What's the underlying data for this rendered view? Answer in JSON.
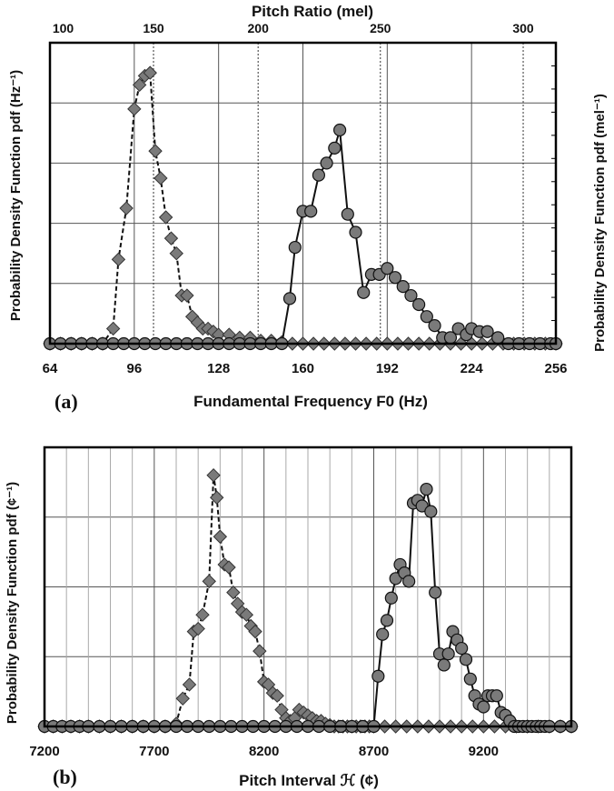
{
  "panels": [
    {
      "panel_label": "(a)",
      "top_axis_title": "Pitch Ratio (mel)",
      "right_ylabel": "Probability Density Function pdf (mel⁻¹)",
      "ylabel": "Probability Density Function pdf (Hz⁻¹)",
      "xlabel": "Fundamental Frequency F0 (Hz)"
    },
    {
      "panel_label": "(b)",
      "ylabel": "Probability Density Function pdf (¢⁻¹)",
      "xlabel": "Pitch Interval ℋ (¢)"
    }
  ],
  "chart_data": [
    {
      "type": "line",
      "x_axis": {
        "ticks": [
          64,
          96,
          128,
          160,
          192,
          224,
          256
        ],
        "lim": [
          64,
          256
        ]
      },
      "top_axis": {
        "ticks": [
          100,
          150,
          200,
          250,
          300
        ],
        "tick_positions_hz": [
          69.0,
          103.3,
          143.0,
          189.4,
          243.6
        ],
        "dotted_lines_hz": [
          103.3,
          143.0,
          189.4,
          243.6
        ]
      },
      "y_axis": {
        "lim": [
          0,
          1
        ],
        "gridlines": [
          0.2,
          0.4,
          0.6,
          0.8
        ],
        "right_minor_ticks": 12
      },
      "grid": true,
      "series": [
        {
          "marker": "diamond",
          "line": "dashed",
          "x": [
            64,
            68,
            72,
            76,
            80,
            84,
            88,
            90,
            93,
            96,
            98,
            100,
            102,
            104,
            106,
            108,
            110,
            112,
            114,
            116,
            118,
            120,
            122,
            124,
            126,
            128,
            132,
            136,
            140,
            144,
            148,
            152,
            156,
            160,
            164,
            168,
            172,
            176,
            180,
            184,
            188,
            192,
            196,
            200,
            204,
            208,
            212,
            216,
            220,
            224,
            228,
            232,
            236,
            240,
            244,
            248,
            252,
            256
          ],
          "y": [
            0,
            0,
            0,
            0,
            0,
            0,
            0.05,
            0.28,
            0.45,
            0.78,
            0.86,
            0.89,
            0.9,
            0.64,
            0.55,
            0.42,
            0.35,
            0.3,
            0.16,
            0.16,
            0.09,
            0.07,
            0.05,
            0.05,
            0.04,
            0.03,
            0.03,
            0.02,
            0.02,
            0.01,
            0.01,
            0.005,
            0,
            0,
            0,
            0,
            0,
            0,
            0,
            0,
            0,
            0,
            0,
            0,
            0,
            0,
            0,
            0,
            0,
            0,
            0,
            0,
            0,
            0,
            0,
            0,
            0,
            0
          ]
        },
        {
          "marker": "circle",
          "line": "solid",
          "x": [
            64,
            68,
            72,
            76,
            80,
            84,
            88,
            92,
            96,
            100,
            104,
            108,
            112,
            116,
            120,
            124,
            128,
            132,
            136,
            140,
            144,
            148,
            152,
            155,
            157,
            160,
            163,
            166,
            169,
            172,
            174,
            177,
            180,
            183,
            186,
            189,
            192,
            195,
            198,
            201,
            204,
            207,
            210,
            213,
            216,
            219,
            222,
            224,
            227,
            230,
            234,
            238,
            242,
            246,
            250,
            254,
            256
          ],
          "y": [
            0,
            0,
            0,
            0,
            0,
            0,
            0,
            0,
            0,
            0,
            0,
            0,
            0,
            0,
            0,
            0,
            0,
            0,
            0,
            0,
            0,
            0,
            0,
            0.15,
            0.32,
            0.44,
            0.44,
            0.56,
            0.6,
            0.65,
            0.71,
            0.43,
            0.37,
            0.17,
            0.23,
            0.23,
            0.25,
            0.22,
            0.19,
            0.16,
            0.13,
            0.09,
            0.06,
            0.02,
            0.02,
            0.05,
            0.03,
            0.05,
            0.04,
            0.04,
            0.02,
            0,
            0,
            0,
            0,
            0,
            0
          ]
        }
      ]
    },
    {
      "type": "line",
      "x_axis": {
        "ticks": [
          7200,
          7700,
          8200,
          8700,
          9200
        ],
        "lim": [
          7200,
          9600
        ]
      },
      "y_axis": {
        "lim": [
          0,
          1
        ],
        "gridlines": [
          0.25,
          0.5,
          0.75
        ]
      },
      "grid": true,
      "series": [
        {
          "marker": "diamond",
          "line": "dashed",
          "x": [
            7200,
            7240,
            7280,
            7320,
            7360,
            7400,
            7450,
            7500,
            7550,
            7600,
            7650,
            7700,
            7750,
            7800,
            7830,
            7860,
            7880,
            7900,
            7920,
            7950,
            7970,
            7985,
            8000,
            8020,
            8040,
            8060,
            8080,
            8100,
            8120,
            8140,
            8160,
            8180,
            8200,
            8220,
            8240,
            8260,
            8280,
            8300,
            8320,
            8340,
            8360,
            8380,
            8400,
            8420,
            8440,
            8460,
            8480,
            8500,
            8520,
            8540,
            8560,
            8580,
            8600,
            8620,
            8640,
            8660,
            8680,
            8700,
            8750,
            8800,
            8850,
            8900,
            8950,
            9000,
            9050,
            9100,
            9150,
            9200,
            9250,
            9300,
            9350,
            9400,
            9450,
            9500,
            9550,
            9600
          ],
          "y": [
            0,
            0,
            0,
            0,
            0,
            0,
            0,
            0,
            0,
            0,
            0,
            0,
            0,
            0.01,
            0.1,
            0.15,
            0.34,
            0.35,
            0.4,
            0.52,
            0.9,
            0.82,
            0.68,
            0.58,
            0.57,
            0.48,
            0.44,
            0.41,
            0.4,
            0.36,
            0.34,
            0.27,
            0.16,
            0.15,
            0.12,
            0.11,
            0.06,
            0.03,
            0.02,
            0.03,
            0.06,
            0.05,
            0.04,
            0.03,
            0.02,
            0.02,
            0.01,
            0.005,
            0,
            0,
            0,
            0,
            0,
            0,
            0,
            0,
            0,
            0,
            0,
            0,
            0,
            0,
            0,
            0,
            0,
            0,
            0,
            0,
            0,
            0,
            0,
            0,
            0,
            0,
            0,
            0
          ]
        },
        {
          "marker": "circle",
          "line": "solid",
          "x": [
            7200,
            7240,
            7280,
            7320,
            7360,
            7400,
            7450,
            7500,
            7550,
            7600,
            7650,
            7700,
            7750,
            7800,
            7850,
            7900,
            7950,
            8000,
            8050,
            8100,
            8150,
            8200,
            8250,
            8300,
            8350,
            8400,
            8450,
            8500,
            8550,
            8600,
            8650,
            8700,
            8720,
            8740,
            8760,
            8780,
            8800,
            8820,
            8840,
            8860,
            8880,
            8900,
            8920,
            8940,
            8960,
            8980,
            9000,
            9020,
            9040,
            9060,
            9080,
            9100,
            9120,
            9140,
            9160,
            9180,
            9200,
            9220,
            9240,
            9260,
            9280,
            9300,
            9320,
            9340,
            9360,
            9380,
            9400,
            9420,
            9440,
            9460,
            9480,
            9500,
            9550,
            9600
          ],
          "y": [
            0,
            0,
            0,
            0,
            0,
            0,
            0,
            0,
            0,
            0,
            0,
            0,
            0,
            0,
            0,
            0,
            0,
            0,
            0,
            0,
            0,
            0,
            0,
            0,
            0,
            0,
            0,
            0,
            0,
            0,
            0,
            0,
            0.18,
            0.33,
            0.38,
            0.46,
            0.53,
            0.58,
            0.55,
            0.52,
            0.8,
            0.81,
            0.79,
            0.85,
            0.77,
            0.48,
            0.26,
            0.22,
            0.26,
            0.34,
            0.31,
            0.28,
            0.24,
            0.17,
            0.11,
            0.08,
            0.07,
            0.11,
            0.11,
            0.11,
            0.05,
            0.04,
            0.02,
            0,
            0,
            0,
            0,
            0,
            0,
            0,
            0,
            0,
            0,
            0
          ]
        }
      ]
    }
  ]
}
